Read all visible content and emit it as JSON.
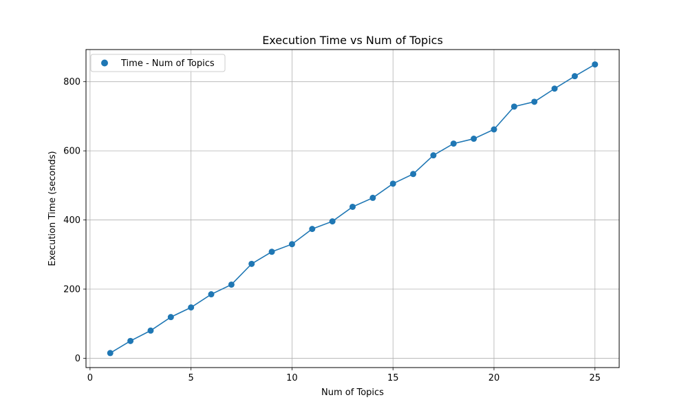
{
  "chart_data": {
    "type": "line",
    "title": "Execution Time vs Num of Topics",
    "xlabel": "Num of Topics",
    "ylabel": "Execution Time (seconds)",
    "xlim": [
      -0.2,
      26.2
    ],
    "ylim": [
      -27,
      893
    ],
    "xticks": [
      0,
      5,
      10,
      15,
      20,
      25
    ],
    "yticks": [
      0,
      200,
      400,
      600,
      800
    ],
    "grid": true,
    "legend": {
      "position": "top-left",
      "entries": [
        "Time - Num of Topics"
      ]
    },
    "series": [
      {
        "name": "Time - Num of Topics",
        "color": "#1f77b4",
        "x": [
          1,
          2,
          3,
          4,
          5,
          6,
          7,
          8,
          9,
          10,
          11,
          12,
          13,
          14,
          15,
          16,
          17,
          18,
          19,
          20,
          21,
          22,
          23,
          24,
          25
        ],
        "y": [
          15,
          50,
          80,
          119,
          147,
          185,
          213,
          273,
          308,
          330,
          374,
          396,
          438,
          464,
          505,
          533,
          587,
          621,
          635,
          662,
          728,
          742,
          780,
          816,
          850
        ]
      }
    ]
  }
}
